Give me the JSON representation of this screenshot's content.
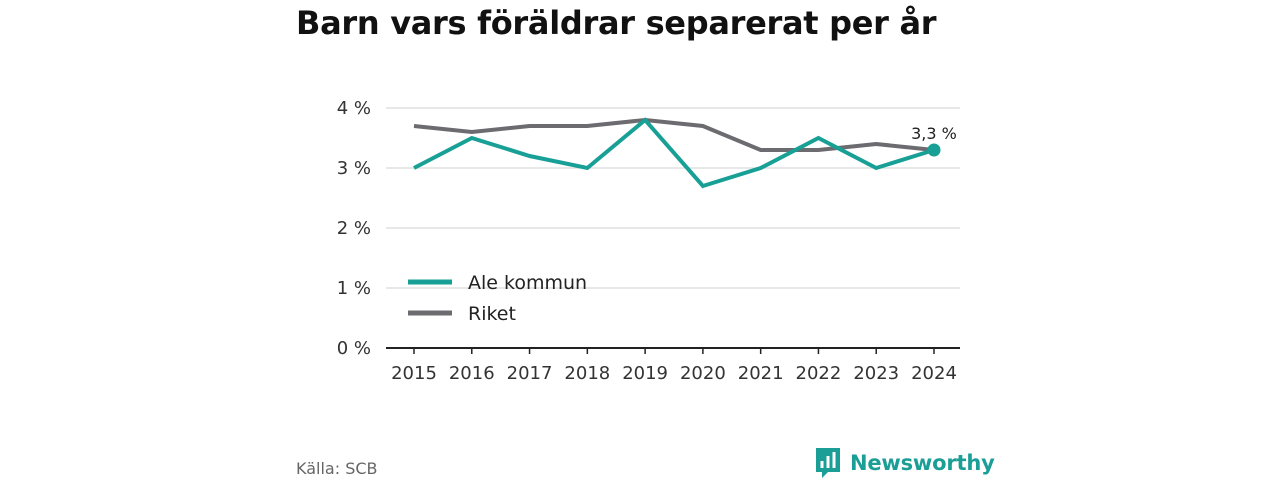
{
  "title": "Barn vars föräldrar separerat per år",
  "source": "Källa: SCB",
  "brand": {
    "name": "Newsworthy",
    "icon": "newsworthy-logo-icon",
    "color": "#1a9e96"
  },
  "chart_data": {
    "type": "line",
    "title": "Barn vars föräldrar separerat per år",
    "xlabel": "",
    "ylabel": "",
    "x": [
      "2015",
      "2016",
      "2017",
      "2018",
      "2019",
      "2020",
      "2021",
      "2022",
      "2023",
      "2024"
    ],
    "ylim": [
      0,
      4
    ],
    "yticks": [
      0,
      1,
      2,
      3,
      4
    ],
    "ytick_labels": [
      "0 %",
      "1 %",
      "2 %",
      "3 %",
      "4 %"
    ],
    "grid": true,
    "legend_position": "bottom-left",
    "series": [
      {
        "name": "Ale kommun",
        "color": "#18a096",
        "values": [
          3.0,
          3.5,
          3.2,
          3.0,
          3.8,
          2.7,
          3.0,
          3.5,
          3.0,
          3.3
        ]
      },
      {
        "name": "Riket",
        "color": "#6b6b70",
        "values": [
          3.7,
          3.6,
          3.7,
          3.7,
          3.8,
          3.7,
          3.3,
          3.3,
          3.4,
          3.3
        ]
      }
    ],
    "annotations": [
      {
        "series": "Ale kommun",
        "x": "2024",
        "value": 3.3,
        "label": "3,3 %"
      }
    ]
  }
}
